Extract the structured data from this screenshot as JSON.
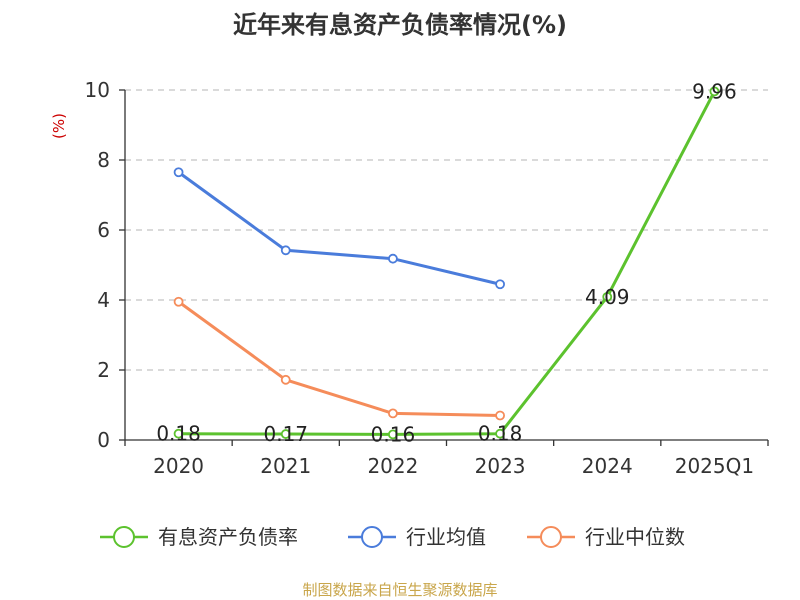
{
  "chart_data": {
    "type": "line",
    "title": "近年来有息资产负债率情况(%)",
    "ylabel": "(%)",
    "xlabel": "",
    "categories": [
      "2020",
      "2021",
      "2022",
      "2023",
      "2024",
      "2025Q1"
    ],
    "ylim": [
      0,
      10
    ],
    "yticks": [
      0,
      2,
      4,
      6,
      8,
      10
    ],
    "grid": "horizontal-dashed",
    "legend_position": "bottom",
    "series": [
      {
        "name": "有息资产负债率",
        "color": "#5cc22e",
        "values": [
          0.18,
          0.17,
          0.16,
          0.18,
          4.09,
          9.96
        ],
        "show_labels": true,
        "show_markers": true
      },
      {
        "name": "行业均值",
        "color": "#4a7cdb",
        "values": [
          7.65,
          5.42,
          5.18,
          4.45,
          null,
          null
        ],
        "show_labels": false,
        "show_markers": true
      },
      {
        "name": "行业中位数",
        "color": "#f58c5a",
        "values": [
          3.95,
          1.72,
          0.76,
          0.7,
          null,
          null
        ],
        "show_labels": false,
        "show_markers": true
      }
    ],
    "data_labels": [
      "0.18",
      "0.17",
      "0.16",
      "0.18",
      "4.09",
      "9.96"
    ]
  },
  "source": "制图数据来自恒生聚源数据库"
}
